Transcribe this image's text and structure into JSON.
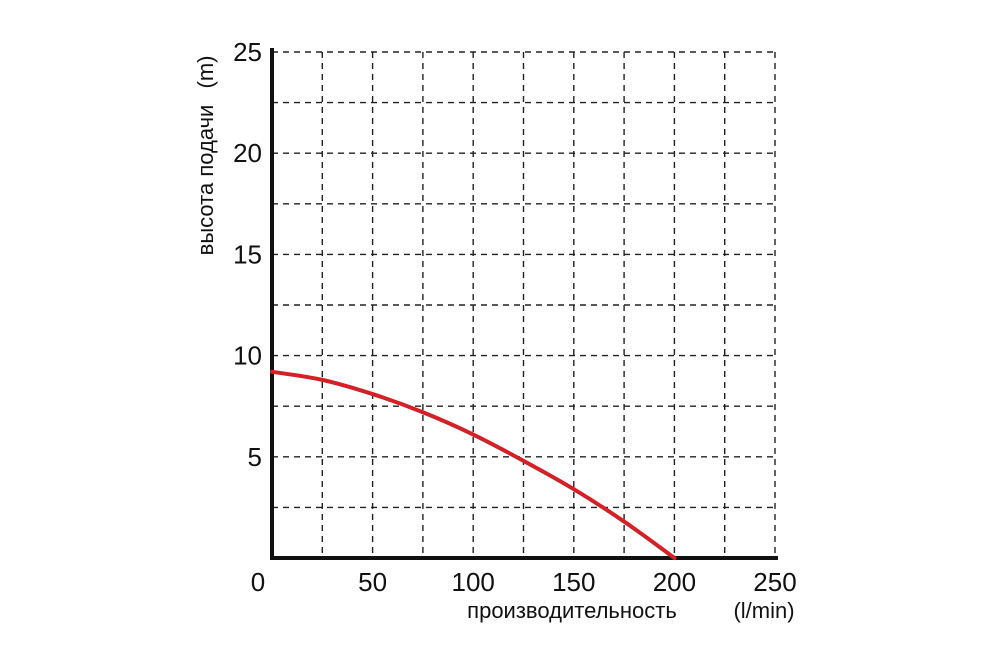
{
  "chart_data": {
    "type": "line",
    "xlabel": "производительность",
    "xunit": "(l/min)",
    "ylabel": "высота подачи",
    "yunit": "(m)",
    "xlim": [
      0,
      250
    ],
    "ylim": [
      0,
      25
    ],
    "x_ticks": [
      0,
      50,
      100,
      150,
      200,
      250
    ],
    "y_ticks": [
      5,
      10,
      15,
      20,
      25
    ],
    "x_grid_step": 25,
    "y_grid_step": 2.5,
    "grid": true,
    "series": [
      {
        "color": "#d42027",
        "x": [
          0,
          25,
          50,
          75,
          100,
          125,
          150,
          175,
          200
        ],
        "y": [
          9.2,
          8.8,
          8.1,
          7.2,
          6.1,
          4.8,
          3.4,
          1.8,
          0
        ]
      }
    ]
  }
}
